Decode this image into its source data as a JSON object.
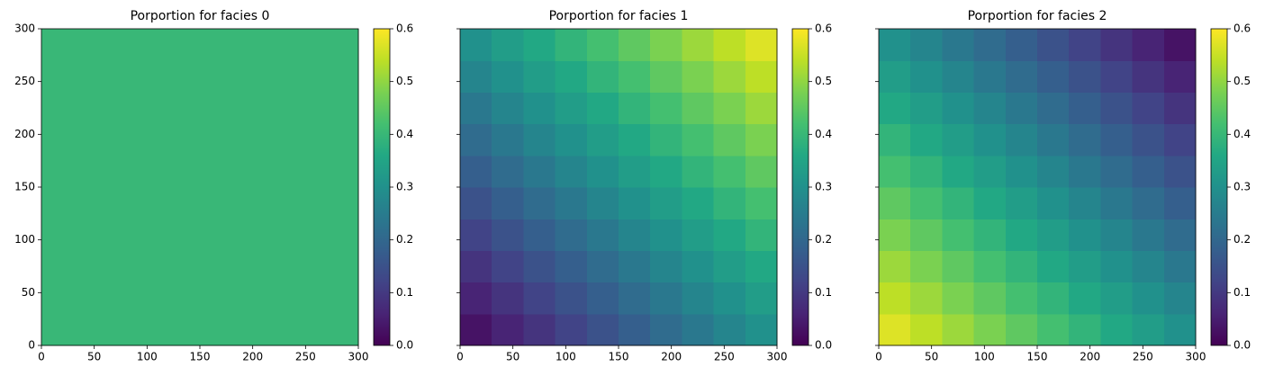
{
  "chart_data": [
    {
      "type": "heatmap",
      "title": "Porportion for facies 0",
      "cmap": "viridis",
      "x": [
        15,
        45,
        75,
        105,
        135,
        165,
        195,
        225,
        255,
        285
      ],
      "y": [
        15,
        45,
        75,
        105,
        135,
        165,
        195,
        225,
        255,
        285
      ],
      "values": [
        [
          0.4,
          0.4,
          0.4,
          0.4,
          0.4,
          0.4,
          0.4,
          0.4,
          0.4,
          0.4
        ],
        [
          0.4,
          0.4,
          0.4,
          0.4,
          0.4,
          0.4,
          0.4,
          0.4,
          0.4,
          0.4
        ],
        [
          0.4,
          0.4,
          0.4,
          0.4,
          0.4,
          0.4,
          0.4,
          0.4,
          0.4,
          0.4
        ],
        [
          0.4,
          0.4,
          0.4,
          0.4,
          0.4,
          0.4,
          0.4,
          0.4,
          0.4,
          0.4
        ],
        [
          0.4,
          0.4,
          0.4,
          0.4,
          0.4,
          0.4,
          0.4,
          0.4,
          0.4,
          0.4
        ],
        [
          0.4,
          0.4,
          0.4,
          0.4,
          0.4,
          0.4,
          0.4,
          0.4,
          0.4,
          0.4
        ],
        [
          0.4,
          0.4,
          0.4,
          0.4,
          0.4,
          0.4,
          0.4,
          0.4,
          0.4,
          0.4
        ],
        [
          0.4,
          0.4,
          0.4,
          0.4,
          0.4,
          0.4,
          0.4,
          0.4,
          0.4,
          0.4
        ],
        [
          0.4,
          0.4,
          0.4,
          0.4,
          0.4,
          0.4,
          0.4,
          0.4,
          0.4,
          0.4
        ],
        [
          0.4,
          0.4,
          0.4,
          0.4,
          0.4,
          0.4,
          0.4,
          0.4,
          0.4,
          0.4
        ]
      ],
      "xlim": [
        0,
        300
      ],
      "ylim": [
        0,
        300
      ],
      "xticks": [
        0,
        50,
        100,
        150,
        200,
        250,
        300
      ],
      "yticks": [
        0,
        50,
        100,
        150,
        200,
        250,
        300
      ],
      "clim": [
        0,
        0.6
      ],
      "cticks": [
        {
          "value": 0,
          "label": "0.0"
        },
        0.1,
        0.2,
        0.3,
        0.4,
        0.5,
        0.6
      ]
    },
    {
      "type": "heatmap",
      "title": "Porportion for facies 1",
      "cmap": "viridis",
      "x": [
        15,
        45,
        75,
        105,
        135,
        165,
        195,
        225,
        255,
        285
      ],
      "y": [
        15,
        45,
        75,
        105,
        135,
        165,
        195,
        225,
        255,
        285
      ],
      "values": [
        [
          0.03,
          0.06,
          0.09,
          0.12,
          0.15,
          0.18,
          0.21,
          0.24,
          0.27,
          0.3
        ],
        [
          0.06,
          0.09,
          0.12,
          0.15,
          0.18,
          0.21,
          0.24,
          0.27,
          0.3,
          0.33
        ],
        [
          0.09,
          0.12,
          0.15,
          0.18,
          0.21,
          0.24,
          0.27,
          0.3,
          0.33,
          0.36
        ],
        [
          0.12,
          0.15,
          0.18,
          0.21,
          0.24,
          0.27,
          0.3,
          0.33,
          0.36,
          0.39
        ],
        [
          0.15,
          0.18,
          0.21,
          0.24,
          0.27,
          0.3,
          0.33,
          0.36,
          0.39,
          0.42
        ],
        [
          0.18,
          0.21,
          0.24,
          0.27,
          0.3,
          0.33,
          0.36,
          0.39,
          0.42,
          0.45
        ],
        [
          0.21,
          0.24,
          0.27,
          0.3,
          0.33,
          0.36,
          0.39,
          0.42,
          0.45,
          0.48
        ],
        [
          0.24,
          0.27,
          0.3,
          0.33,
          0.36,
          0.39,
          0.42,
          0.45,
          0.48,
          0.51
        ],
        [
          0.27,
          0.3,
          0.33,
          0.36,
          0.39,
          0.42,
          0.45,
          0.48,
          0.51,
          0.54
        ],
        [
          0.3,
          0.33,
          0.36,
          0.39,
          0.42,
          0.45,
          0.48,
          0.51,
          0.54,
          0.57
        ]
      ],
      "xlim": [
        0,
        300
      ],
      "ylim": [
        0,
        300
      ],
      "xticks": [
        0,
        50,
        100,
        150,
        200,
        250,
        300
      ],
      "yticks": [
        0,
        50,
        100,
        150,
        200,
        250,
        300
      ],
      "ytick_labels": false,
      "clim": [
        0,
        0.6
      ],
      "cticks": [
        {
          "value": 0,
          "label": "0.0"
        },
        0.1,
        0.2,
        0.3,
        0.4,
        0.5,
        0.6
      ]
    },
    {
      "type": "heatmap",
      "title": "Porportion for facies 2",
      "cmap": "viridis",
      "x": [
        15,
        45,
        75,
        105,
        135,
        165,
        195,
        225,
        255,
        285
      ],
      "y": [
        15,
        45,
        75,
        105,
        135,
        165,
        195,
        225,
        255,
        285
      ],
      "values": [
        [
          0.57,
          0.54,
          0.51,
          0.48,
          0.45,
          0.42,
          0.39,
          0.36,
          0.33,
          0.3
        ],
        [
          0.54,
          0.51,
          0.48,
          0.45,
          0.42,
          0.39,
          0.36,
          0.33,
          0.3,
          0.27
        ],
        [
          0.51,
          0.48,
          0.45,
          0.42,
          0.39,
          0.36,
          0.33,
          0.3,
          0.27,
          0.24
        ],
        [
          0.48,
          0.45,
          0.42,
          0.39,
          0.36,
          0.33,
          0.3,
          0.27,
          0.24,
          0.21
        ],
        [
          0.45,
          0.42,
          0.39,
          0.36,
          0.33,
          0.3,
          0.27,
          0.24,
          0.21,
          0.18
        ],
        [
          0.42,
          0.39,
          0.36,
          0.33,
          0.3,
          0.27,
          0.24,
          0.21,
          0.18,
          0.15
        ],
        [
          0.39,
          0.36,
          0.33,
          0.3,
          0.27,
          0.24,
          0.21,
          0.18,
          0.15,
          0.12
        ],
        [
          0.36,
          0.33,
          0.3,
          0.27,
          0.24,
          0.21,
          0.18,
          0.15,
          0.12,
          0.09
        ],
        [
          0.33,
          0.3,
          0.27,
          0.24,
          0.21,
          0.18,
          0.15,
          0.12,
          0.09,
          0.06
        ],
        [
          0.3,
          0.27,
          0.24,
          0.21,
          0.18,
          0.15,
          0.12,
          0.09,
          0.06,
          0.03
        ]
      ],
      "xlim": [
        0,
        300
      ],
      "ylim": [
        0,
        300
      ],
      "xticks": [
        0,
        50,
        100,
        150,
        200,
        250,
        300
      ],
      "yticks": [
        0,
        50,
        100,
        150,
        200,
        250,
        300
      ],
      "ytick_labels": false,
      "clim": [
        0,
        0.6
      ],
      "cticks": [
        {
          "value": 0,
          "label": "0.0"
        },
        0.1,
        0.2,
        0.3,
        0.4,
        0.5,
        0.6
      ]
    }
  ]
}
